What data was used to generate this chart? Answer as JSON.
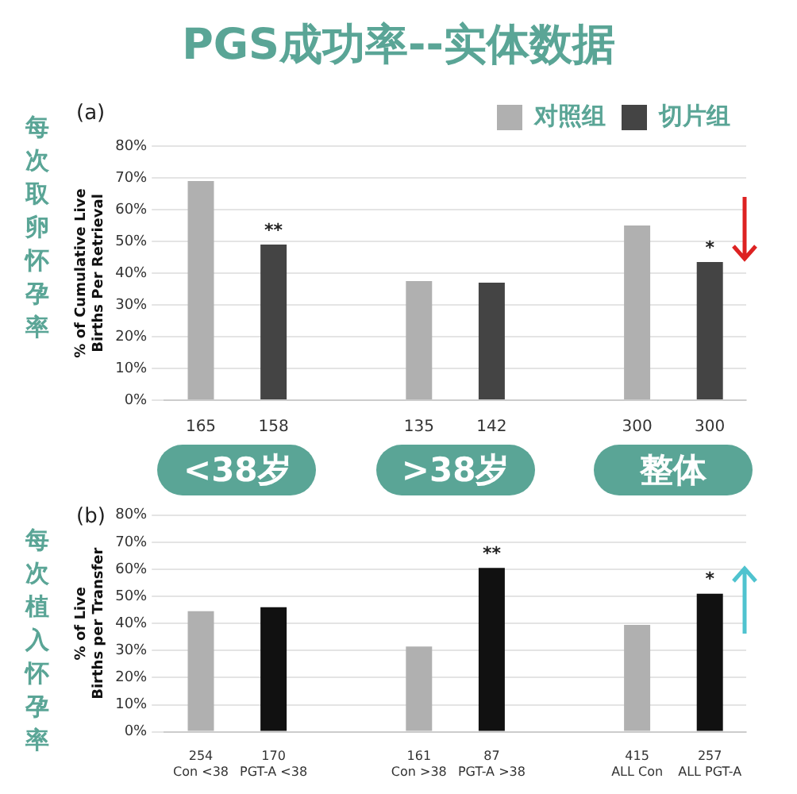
{
  "chart_data": [
    {
      "type": "bar",
      "title": "PGS成功率--实体数据",
      "ylabel": "% of Cumulative Live Births Per Retrieval",
      "categories": [
        "165",
        "158",
        null,
        "135",
        "142",
        null,
        "300",
        "300"
      ],
      "series": [
        {
          "name": "对照组",
          "color": "#b0b0b0",
          "values": [
            69,
            null,
            null,
            37.5,
            null,
            null,
            55,
            null
          ]
        },
        {
          "name": "切片组",
          "color": "#444444",
          "values": [
            null,
            49,
            null,
            null,
            37,
            null,
            null,
            43.5
          ]
        }
      ],
      "ylim": [
        0,
        80
      ],
      "yticks": [
        {
          "value": 0,
          "label": "0%"
        },
        {
          "value": 10,
          "label": "10%"
        },
        {
          "value": 20,
          "label": "20%"
        },
        {
          "value": 30,
          "label": "30%"
        },
        {
          "value": 40,
          "label": "40%"
        },
        {
          "value": 50,
          "label": "50%"
        },
        {
          "value": 60,
          "label": "60%"
        },
        {
          "value": 70,
          "label": "70%"
        },
        {
          "value": 80,
          "label": "80%"
        }
      ],
      "grid": "y",
      "legend": "top right",
      "annotations": [
        "(a)",
        "每次取卵怀孕率",
        "<38岁",
        ">38岁",
        "整体",
        "*",
        {
          "text": "**",
          "x": "158",
          "y": 49
        }
      ]
    },
    {
      "type": "bar",
      "ylabel": "% of Live Births per Transfer",
      "categories": [
        "254\nCon <38",
        "170\nPGT-A <38",
        null,
        "161\nCon >38",
        "87\nPGT-A >38",
        null,
        "415\nALL Con",
        "257\nALL PGT-A"
      ],
      "series": [
        {
          "color": "#b0b0b0",
          "values": [
            44.5,
            null,
            null,
            31.5,
            null,
            null,
            39.5,
            null
          ]
        },
        {
          "color": "#111111",
          "values": [
            null,
            46,
            null,
            null,
            60.5,
            null,
            null,
            51
          ]
        }
      ],
      "ylim": [
        0,
        80
      ],
      "yticks": [
        {
          "value": 0,
          "label": "0%"
        },
        {
          "value": 10,
          "label": "10%"
        },
        {
          "value": 20,
          "label": "20%"
        },
        {
          "value": 30,
          "label": "30%"
        },
        {
          "value": 40,
          "label": "40%"
        },
        {
          "value": 50,
          "label": "50%"
        },
        {
          "value": 60,
          "label": "60%"
        },
        {
          "value": 70,
          "label": "70%"
        },
        {
          "value": 80,
          "label": "80%"
        }
      ],
      "grid": "y",
      "legend": false,
      "annotations": [
        "(b)",
        "每次植入怀孕率",
        {
          "text": "**",
          "x": "87\nPGT-A >38",
          "y": 60.5
        },
        {
          "text": "*",
          "x": "257\nALL PGT-A",
          "y": 51
        }
      ]
    }
  ]
}
